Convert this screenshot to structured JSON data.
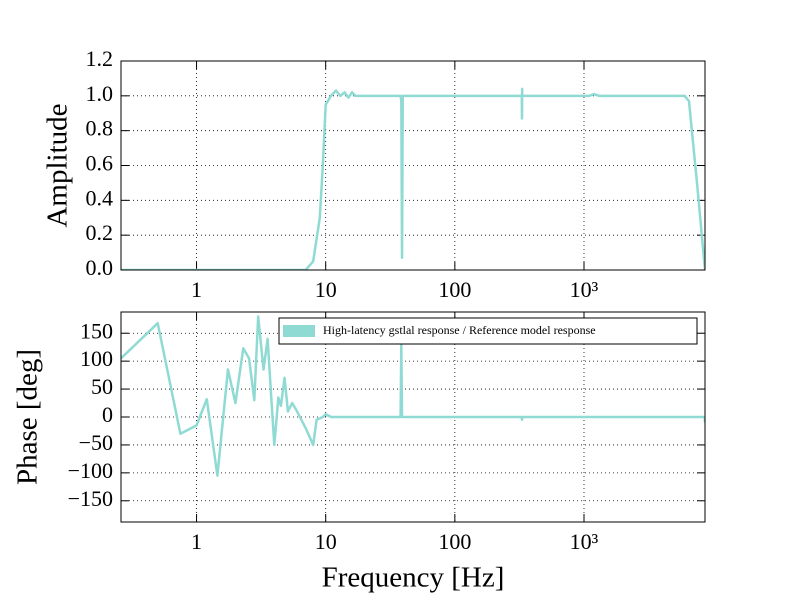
{
  "chart_data": [
    {
      "type": "line",
      "ylabel": "Amplitude",
      "xscale": "log",
      "grid": true,
      "xlim": [
        0.26,
        8650
      ],
      "xticks": [
        1,
        10,
        100,
        {
          "value": 1000,
          "label": "10³"
        }
      ],
      "ylim": [
        0,
        1.2
      ],
      "yticks": [
        {
          "value": 0,
          "label": "0.0"
        },
        0.2,
        0.4,
        0.6,
        0.8,
        {
          "value": 1,
          "label": "1.0"
        },
        1.2
      ],
      "x": [
        0.26,
        7,
        8,
        9,
        9.5,
        10,
        11,
        12,
        13,
        14,
        15,
        16,
        17,
        38,
        38.5,
        39,
        39.5,
        330,
        331,
        332,
        333,
        1100,
        1200,
        1300,
        6000,
        6500,
        7500,
        8650
      ],
      "series": [
        {
          "color": "#8fdbd3",
          "values": [
            0,
            0,
            0.05,
            0.3,
            0.6,
            0.95,
            1.0,
            1.03,
            1.0,
            1.02,
            0.99,
            1.02,
            1.0,
            1.0,
            0.97,
            0.07,
            1.0,
            1.0,
            0.87,
            1.04,
            1.0,
            1.0,
            1.01,
            1.0,
            1.0,
            0.97,
            0.5,
            0
          ]
        }
      ]
    },
    {
      "type": "line",
      "xlabel": "Frequency [Hz]",
      "ylabel": "Phase [deg]",
      "xscale": "log",
      "grid": true,
      "legend": "upper right",
      "xlim": [
        0.26,
        8650
      ],
      "xticks": [
        1,
        10,
        100,
        {
          "value": 1000,
          "label": "10³"
        }
      ],
      "ylim": [
        -188,
        188
      ],
      "yticks": [
        {
          "value": -150,
          "label": "−150"
        },
        {
          "value": -100,
          "label": "−100"
        },
        {
          "value": -50,
          "label": "−50"
        },
        0,
        50,
        100,
        150
      ],
      "x": [
        0.26,
        0.5,
        0.75,
        1.0,
        1.2,
        1.45,
        1.75,
        2.0,
        2.3,
        2.55,
        2.8,
        3.0,
        3.3,
        3.55,
        3.8,
        4.0,
        4.3,
        4.5,
        4.8,
        5.1,
        5.5,
        6.0,
        7.0,
        8.0,
        8.5,
        9.5,
        10,
        11,
        38,
        38.5,
        39,
        330,
        331,
        333,
        8600,
        8650
      ],
      "series": [
        {
          "name": "High-latency gstlal response / Reference model response",
          "color": "#8fdbd3",
          "values": [
            105,
            168,
            -30,
            -15,
            32,
            -105,
            85,
            25,
            123,
            105,
            30,
            180,
            85,
            140,
            30,
            -50,
            35,
            20,
            70,
            10,
            25,
            10,
            -20,
            -50,
            -5,
            0,
            5,
            0,
            0,
            130,
            0,
            0,
            -5,
            0,
            0,
            -10
          ]
        }
      ]
    }
  ]
}
